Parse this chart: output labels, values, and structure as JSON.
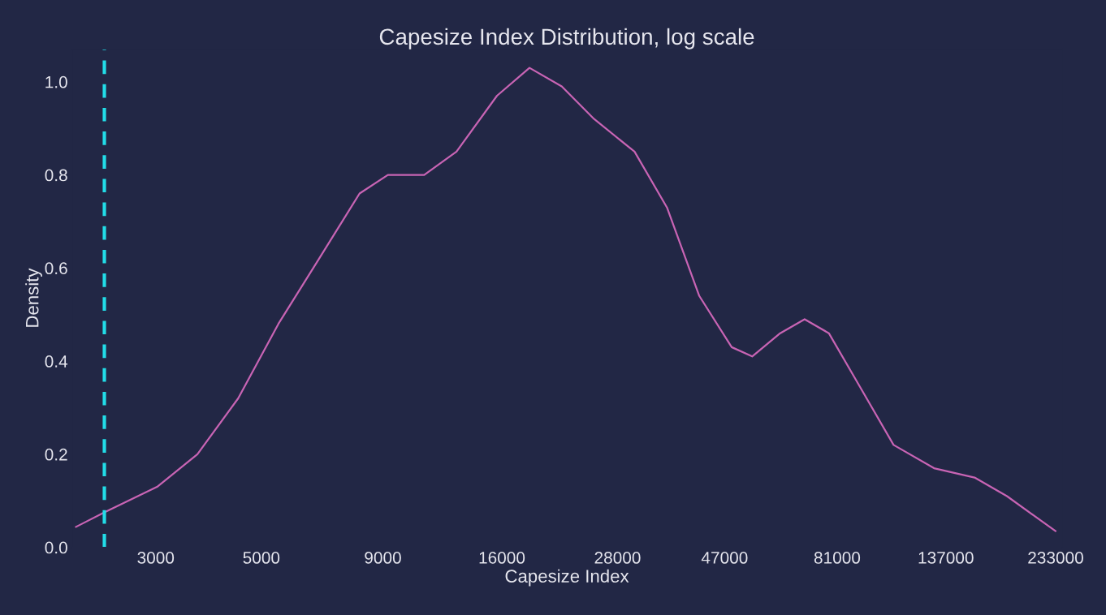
{
  "chart_data": {
    "type": "line",
    "title": "Capesize Index Distribution, log scale",
    "xlabel": "Capesize Index",
    "ylabel": "Density",
    "x": [
      2040,
      2340,
      3020,
      3670,
      4470,
      5430,
      6610,
      8040,
      9220,
      10990,
      12850,
      15630,
      18290,
      21380,
      25000,
      30400,
      35560,
      41580,
      48630,
      53700,
      61500,
      69200,
      77800,
      91000,
      106400,
      129400,
      157400,
      184100,
      232800
    ],
    "series": [
      {
        "color": "#c864b4",
        "values": [
          0.044,
          0.075,
          0.13,
          0.2,
          0.32,
          0.48,
          0.62,
          0.76,
          0.8,
          0.8,
          0.85,
          0.97,
          1.03,
          0.99,
          0.92,
          0.85,
          0.73,
          0.54,
          0.43,
          0.41,
          0.46,
          0.49,
          0.46,
          0.34,
          0.22,
          0.17,
          0.15,
          0.11,
          0.035
        ]
      }
    ],
    "log": "x",
    "xlim": [
      2000,
      240000
    ],
    "ylim": [
      0,
      1.07
    ],
    "xticks": [
      3000,
      5000,
      9000,
      16000,
      28000,
      47000,
      81000,
      137000,
      233000
    ],
    "yticks": [
      {
        "value": 0,
        "label": "0.0"
      },
      {
        "value": 0.2,
        "label": "0.2"
      },
      {
        "value": 0.4,
        "label": "0.4"
      },
      {
        "value": 0.6,
        "label": "0.6"
      },
      {
        "value": 0.8,
        "label": "0.8"
      },
      {
        "value": 1.0,
        "label": "1.0"
      }
    ],
    "ref_lines": [
      {
        "axis": "x",
        "value": 2340,
        "color": "#22dde8",
        "line_style": "dashed"
      }
    ],
    "grid": false,
    "legend": false
  }
}
